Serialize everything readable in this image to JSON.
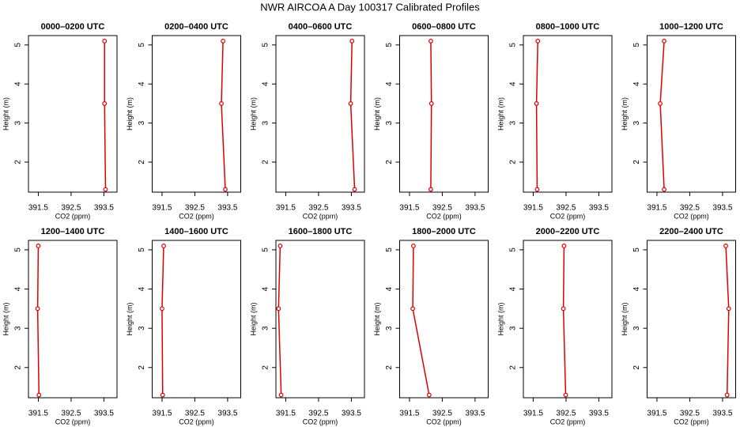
{
  "title": "NWR AIRCOA A  Day 100317  Calibrated Profiles",
  "chart_data": [
    {
      "type": "line",
      "title": "0000–0200 UTC",
      "x_label": "CO2 (ppm)",
      "y_label": "Height (m)",
      "color": "#dd0000",
      "x": [
        393.52,
        393.52,
        393.55
      ],
      "values": [
        5.1,
        3.5,
        1.3
      ],
      "xlim": [
        391.2,
        393.9
      ],
      "ylim": [
        1.23,
        5.24
      ],
      "xticks": [
        391.5,
        392.5,
        393.5
      ],
      "yticks": [
        2,
        3,
        4,
        5
      ]
    },
    {
      "type": "line",
      "title": "0200–0400 UTC",
      "x_label": "CO2 (ppm)",
      "y_label": "Height (m)",
      "color": "#dd0000",
      "x": [
        393.36,
        393.31,
        393.43
      ],
      "values": [
        5.1,
        3.5,
        1.3
      ],
      "xlim": [
        391.2,
        393.9
      ],
      "ylim": [
        1.23,
        5.24
      ],
      "xticks": [
        391.5,
        392.5,
        393.5
      ],
      "yticks": [
        2,
        3,
        4,
        5
      ]
    },
    {
      "type": "line",
      "title": "0400–0600 UTC",
      "x_label": "CO2 (ppm)",
      "y_label": "Height (m)",
      "color": "#dd0000",
      "x": [
        393.52,
        393.48,
        393.6
      ],
      "values": [
        5.1,
        3.5,
        1.3
      ],
      "xlim": [
        391.2,
        393.9
      ],
      "ylim": [
        1.23,
        5.24
      ],
      "xticks": [
        391.5,
        392.5,
        393.5
      ],
      "yticks": [
        2,
        3,
        4,
        5
      ]
    },
    {
      "type": "line",
      "title": "0600–0800 UTC",
      "x_label": "CO2 (ppm)",
      "y_label": "Height (m)",
      "color": "#dd0000",
      "x": [
        392.15,
        392.17,
        392.15
      ],
      "values": [
        5.1,
        3.5,
        1.3
      ],
      "xlim": [
        391.2,
        393.9
      ],
      "ylim": [
        1.23,
        5.24
      ],
      "xticks": [
        391.5,
        392.5,
        393.5
      ],
      "yticks": [
        2,
        3,
        4,
        5
      ]
    },
    {
      "type": "line",
      "title": "0800–1000 UTC",
      "x_label": "CO2 (ppm)",
      "y_label": "Height (m)",
      "color": "#dd0000",
      "x": [
        391.64,
        391.6,
        391.62
      ],
      "values": [
        5.1,
        3.5,
        1.3
      ],
      "xlim": [
        391.2,
        393.9
      ],
      "ylim": [
        1.23,
        5.24
      ],
      "xticks": [
        391.5,
        392.5,
        393.5
      ],
      "yticks": [
        2,
        3,
        4,
        5
      ]
    },
    {
      "type": "line",
      "title": "1000–1200 UTC",
      "x_label": "CO2 (ppm)",
      "y_label": "Height (m)",
      "color": "#dd0000",
      "x": [
        391.72,
        391.6,
        391.72
      ],
      "values": [
        5.1,
        3.5,
        1.3
      ],
      "xlim": [
        391.2,
        393.9
      ],
      "ylim": [
        1.23,
        5.24
      ],
      "xticks": [
        391.5,
        392.5,
        393.5
      ],
      "yticks": [
        2,
        3,
        4,
        5
      ]
    },
    {
      "type": "line",
      "title": "1200–1400 UTC",
      "x_label": "CO2 (ppm)",
      "y_label": "Height (m)",
      "color": "#dd0000",
      "x": [
        391.5,
        391.48,
        391.52
      ],
      "values": [
        5.1,
        3.5,
        1.3
      ],
      "xlim": [
        391.2,
        393.9
      ],
      "ylim": [
        1.23,
        5.24
      ],
      "xticks": [
        391.5,
        392.5,
        393.5
      ],
      "yticks": [
        2,
        3,
        4,
        5
      ]
    },
    {
      "type": "line",
      "title": "1400–1600 UTC",
      "x_label": "CO2 (ppm)",
      "y_label": "Height (m)",
      "color": "#dd0000",
      "x": [
        391.55,
        391.5,
        391.52
      ],
      "values": [
        5.1,
        3.5,
        1.3
      ],
      "xlim": [
        391.2,
        393.9
      ],
      "ylim": [
        1.23,
        5.24
      ],
      "xticks": [
        391.5,
        392.5,
        393.5
      ],
      "yticks": [
        2,
        3,
        4,
        5
      ]
    },
    {
      "type": "line",
      "title": "1600–1800 UTC",
      "x_label": "CO2 (ppm)",
      "y_label": "Height (m)",
      "color": "#dd0000",
      "x": [
        391.33,
        391.28,
        391.36
      ],
      "values": [
        5.1,
        3.5,
        1.3
      ],
      "xlim": [
        391.2,
        393.9
      ],
      "ylim": [
        1.23,
        5.24
      ],
      "xticks": [
        391.5,
        392.5,
        393.5
      ],
      "yticks": [
        2,
        3,
        4,
        5
      ]
    },
    {
      "type": "line",
      "title": "1800–2000 UTC",
      "x_label": "CO2 (ppm)",
      "y_label": "Height (m)",
      "color": "#dd0000",
      "x": [
        391.62,
        391.6,
        392.1
      ],
      "values": [
        5.1,
        3.5,
        1.3
      ],
      "xlim": [
        391.2,
        393.9
      ],
      "ylim": [
        1.23,
        5.24
      ],
      "xticks": [
        391.5,
        392.5,
        393.5
      ],
      "yticks": [
        2,
        3,
        4,
        5
      ]
    },
    {
      "type": "line",
      "title": "2000–2200 UTC",
      "x_label": "CO2 (ppm)",
      "y_label": "Height (m)",
      "color": "#dd0000",
      "x": [
        392.44,
        392.42,
        392.49
      ],
      "values": [
        5.1,
        3.5,
        1.3
      ],
      "xlim": [
        391.2,
        393.9
      ],
      "ylim": [
        1.23,
        5.24
      ],
      "xticks": [
        391.5,
        392.5,
        393.5
      ],
      "yticks": [
        2,
        3,
        4,
        5
      ]
    },
    {
      "type": "line",
      "title": "2200–2400 UTC",
      "x_label": "CO2 (ppm)",
      "y_label": "Height (m)",
      "color": "#dd0000",
      "x": [
        393.6,
        393.69,
        393.64
      ],
      "values": [
        5.1,
        3.5,
        1.3
      ],
      "xlim": [
        391.2,
        393.9
      ],
      "ylim": [
        1.23,
        5.24
      ],
      "xticks": [
        391.5,
        392.5,
        393.5
      ],
      "yticks": [
        2,
        3,
        4,
        5
      ]
    }
  ]
}
